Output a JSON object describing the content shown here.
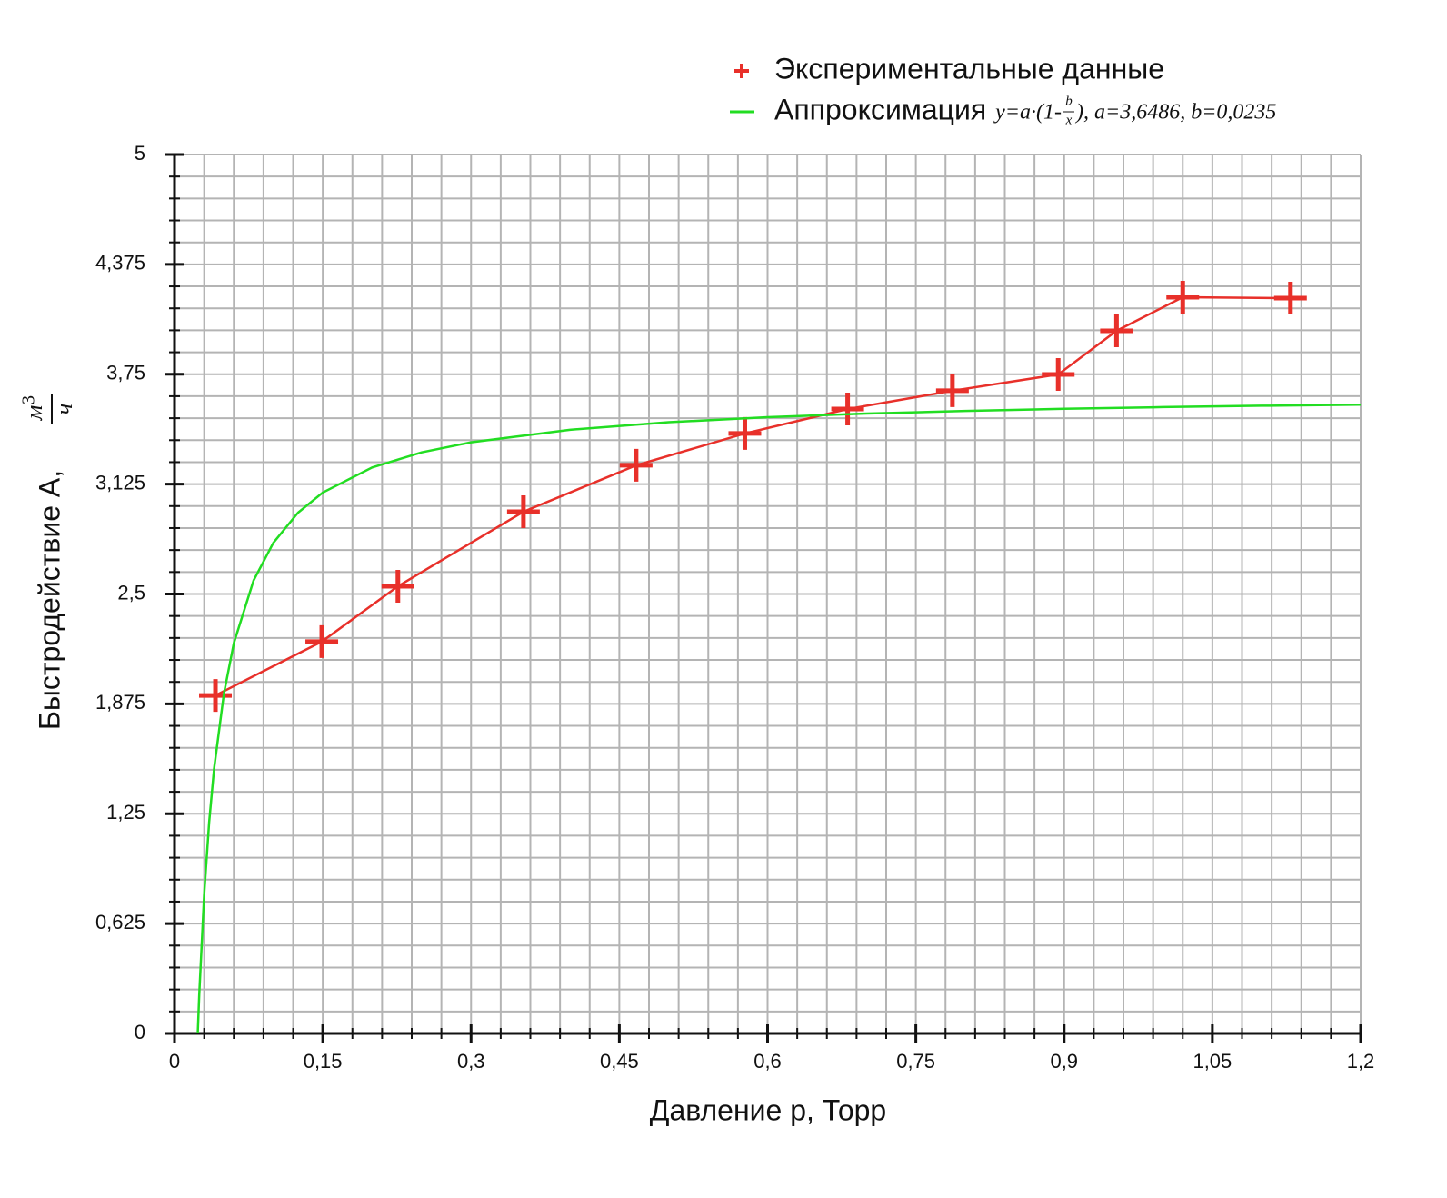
{
  "chart_data": {
    "type": "line",
    "xlabel": "Давление p, Торр",
    "ylabel": "Быстродействие А,",
    "ylabel_unit": {
      "num": "м",
      "sup": "3",
      "den": "ч"
    },
    "xlim": [
      0,
      1.2
    ],
    "ylim": [
      0,
      5
    ],
    "xticks": [
      0,
      {
        "value": 0.15,
        "label": "0,15"
      },
      {
        "value": 0.3,
        "label": "0,3"
      },
      {
        "value": 0.45,
        "label": "0,45"
      },
      {
        "value": 0.6,
        "label": "0,6"
      },
      {
        "value": 0.75,
        "label": "0,75"
      },
      {
        "value": 0.9,
        "label": "0,9"
      },
      {
        "value": 1.05,
        "label": "1,05"
      },
      {
        "value": 1.2,
        "label": "1,2"
      }
    ],
    "yticks": [
      0,
      {
        "value": 0.625,
        "label": "0,625"
      },
      {
        "value": 1.25,
        "label": "1,25"
      },
      {
        "value": 1.875,
        "label": "1,875"
      },
      {
        "value": 2.5,
        "label": "2,5"
      },
      {
        "value": 3.125,
        "label": "3,125"
      },
      {
        "value": 3.75,
        "label": "3,75"
      },
      {
        "value": 4.375,
        "label": "4,375"
      },
      5
    ],
    "xgrid": [
      0,
      0.03,
      0.06,
      0.09,
      0.12,
      0.15,
      0.18,
      0.21,
      0.24,
      0.27,
      0.3,
      0.33,
      0.36,
      0.39,
      0.42,
      0.45,
      0.48,
      0.51,
      0.54,
      0.57,
      0.6,
      0.63,
      0.66,
      0.69,
      0.72,
      0.75,
      0.78,
      0.81,
      0.84,
      0.87,
      0.9,
      0.93,
      0.96,
      0.99,
      1.02,
      1.05,
      1.08,
      1.11,
      1.14,
      1.17,
      1.2
    ],
    "ygrid": [
      0,
      0.125,
      0.25,
      0.375,
      0.5,
      0.625,
      0.75,
      0.875,
      1,
      1.125,
      1.25,
      1.375,
      1.5,
      1.625,
      1.75,
      1.875,
      2,
      2.125,
      2.25,
      2.375,
      2.5,
      2.625,
      2.75,
      2.875,
      3,
      3.125,
      3.25,
      3.375,
      3.5,
      3.625,
      3.75,
      3.875,
      4,
      4.125,
      4.25,
      4.375,
      4.5,
      4.625,
      4.75,
      4.875,
      5
    ],
    "grid": true,
    "legend": "top-right",
    "legend_formula": {
      "lhs": "y=a·(1-",
      "num": "b",
      "den": "x",
      "rhs": "), a=3,6486, b=0,0235"
    },
    "series": [
      {
        "name": "Экспериментальные данные",
        "color": "#e8302a",
        "marker": "cross",
        "x": [
          0.0414,
          0.149,
          0.226,
          0.353,
          0.467,
          0.577,
          0.681,
          0.787,
          0.894,
          0.953,
          1.02,
          1.129
        ],
        "values": [
          1.923,
          2.229,
          2.544,
          2.968,
          3.232,
          3.413,
          3.552,
          3.656,
          3.749,
          3.997,
          4.188,
          4.183
        ]
      },
      {
        "name": "Аппроксимация",
        "color": "#22dd22",
        "marker": "none",
        "x": [
          0.0235,
          0.025,
          0.03,
          0.035,
          0.04,
          0.05,
          0.06,
          0.08,
          0.1,
          0.125,
          0.15,
          0.2,
          0.25,
          0.3,
          0.4,
          0.5,
          0.6,
          0.7,
          0.8,
          0.9,
          1.0,
          1.1,
          1.2
        ],
        "values": [
          0,
          0.2189,
          0.7905,
          1.1989,
          1.505,
          1.9338,
          2.2196,
          2.5768,
          2.7912,
          2.9627,
          3.077,
          3.2199,
          3.3056,
          3.3628,
          3.4342,
          3.4771,
          3.5057,
          3.5261,
          3.5414,
          3.5533,
          3.5629,
          3.5707,
          3.5771
        ]
      }
    ]
  }
}
